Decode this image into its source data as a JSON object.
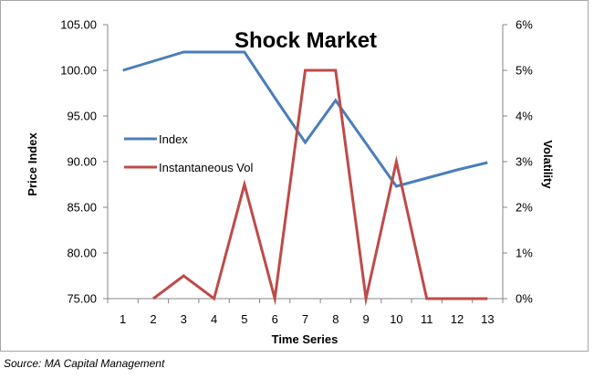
{
  "chart_data": {
    "type": "line",
    "title": "Shock Market",
    "xlabel": "Time Series",
    "ylabel_left": "Price Index",
    "ylabel_right": "Volatility",
    "x": [
      1,
      2,
      3,
      4,
      5,
      6,
      7,
      8,
      9,
      10,
      11,
      12,
      13
    ],
    "y_left_ticks": [
      "75.00",
      "80.00",
      "85.00",
      "90.00",
      "95.00",
      "100.00",
      "105.00"
    ],
    "y_left_range": [
      75,
      105
    ],
    "y_right_ticks": [
      "0%",
      "1%",
      "2%",
      "3%",
      "4%",
      "5%",
      "6%"
    ],
    "y_right_range": [
      0,
      6
    ],
    "grid": false,
    "legend_position": "left",
    "series": [
      {
        "name": "Index",
        "axis": "left",
        "color": "#4a7ebb",
        "values": [
          100.0,
          101.0,
          102.0,
          102.0,
          102.0,
          97.0,
          92.1,
          96.7,
          92.0,
          87.3,
          88.2,
          89.1,
          89.9
        ]
      },
      {
        "name": "Instantaneous Vol",
        "axis": "right",
        "color": "#be4b48",
        "values": [
          null,
          0.0,
          0.5,
          0.0,
          2.5,
          0.0,
          5.0,
          5.0,
          0.0,
          3.0,
          0.0,
          0.0,
          0.0
        ]
      }
    ]
  },
  "source": "Source: MA Capital Management"
}
